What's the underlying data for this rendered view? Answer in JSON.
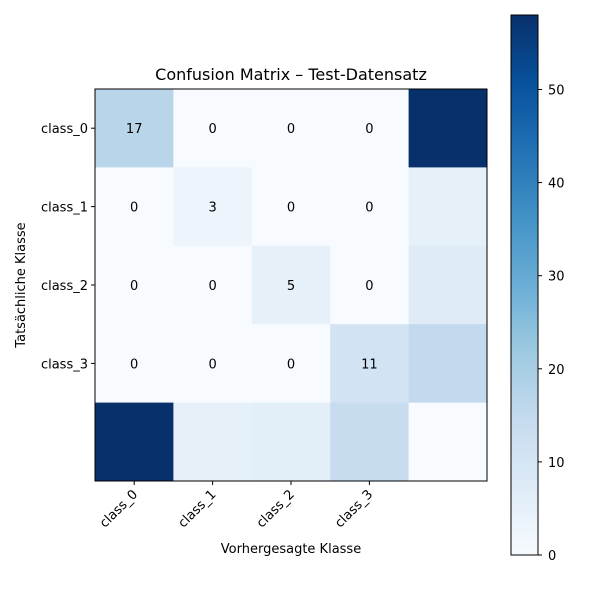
{
  "chart_data": {
    "type": "heatmap",
    "title": "Confusion Matrix – Test-Datensatz",
    "xlabel": "Vorhergesagte Klasse",
    "ylabel": "Tatsächliche Klasse",
    "x_tick_labels": [
      "class_0",
      "class_1",
      "class_2",
      "class_3"
    ],
    "y_tick_labels": [
      "class_0",
      "class_1",
      "class_2",
      "class_3"
    ],
    "matrix": [
      [
        17,
        0,
        0,
        0,
        58
      ],
      [
        0,
        3,
        0,
        0,
        5
      ],
      [
        0,
        0,
        5,
        0,
        7
      ],
      [
        0,
        0,
        0,
        11,
        15
      ],
      [
        58,
        5,
        6,
        14,
        0
      ]
    ],
    "annotated_rows": 4,
    "annotated_cols": 4,
    "colormap": "Blues",
    "colorbar": {
      "min": 0,
      "max": 58,
      "ticks": [
        0,
        10,
        20,
        30,
        40,
        50
      ]
    }
  }
}
